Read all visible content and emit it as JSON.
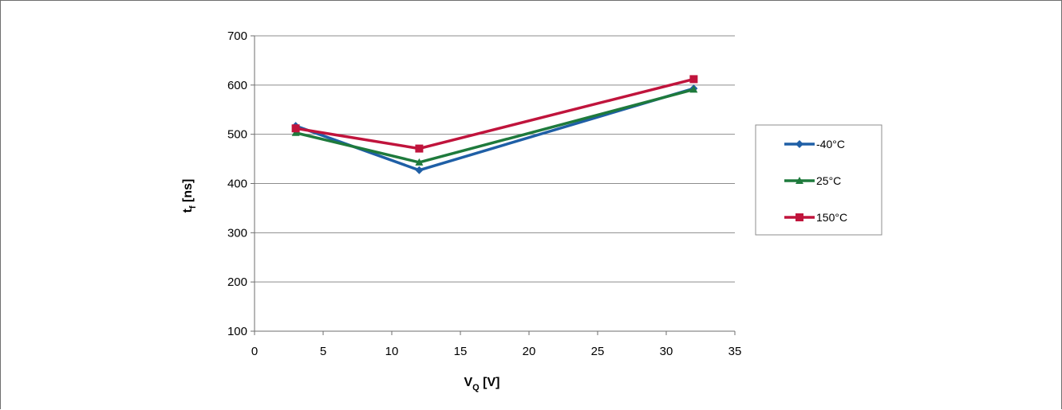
{
  "chart_data": {
    "type": "line",
    "xlabel": {
      "main": "V",
      "sub": "Q",
      "unit": " [V]"
    },
    "ylabel": {
      "main": "t",
      "sub": "f",
      "unit": " [ns]"
    },
    "xlim": [
      0,
      35
    ],
    "ylim": [
      100,
      700
    ],
    "xticks": [
      0,
      5,
      10,
      15,
      20,
      25,
      30,
      35
    ],
    "yticks": [
      100,
      200,
      300,
      400,
      500,
      600,
      700
    ],
    "grid": "horizontal",
    "legend_position": "right",
    "series": [
      {
        "name": "-40°C",
        "marker": "diamond",
        "color": "#1f5fa6",
        "x": [
          3,
          12,
          32
        ],
        "y": [
          517,
          427,
          593
        ]
      },
      {
        "name": "25°C",
        "marker": "triangle",
        "color": "#1e7a3c",
        "x": [
          3,
          12,
          32
        ],
        "y": [
          503,
          443,
          591
        ]
      },
      {
        "name": "150°C",
        "marker": "square",
        "color": "#c0143c",
        "x": [
          3,
          12,
          32
        ],
        "y": [
          512,
          471,
          612
        ]
      }
    ]
  }
}
